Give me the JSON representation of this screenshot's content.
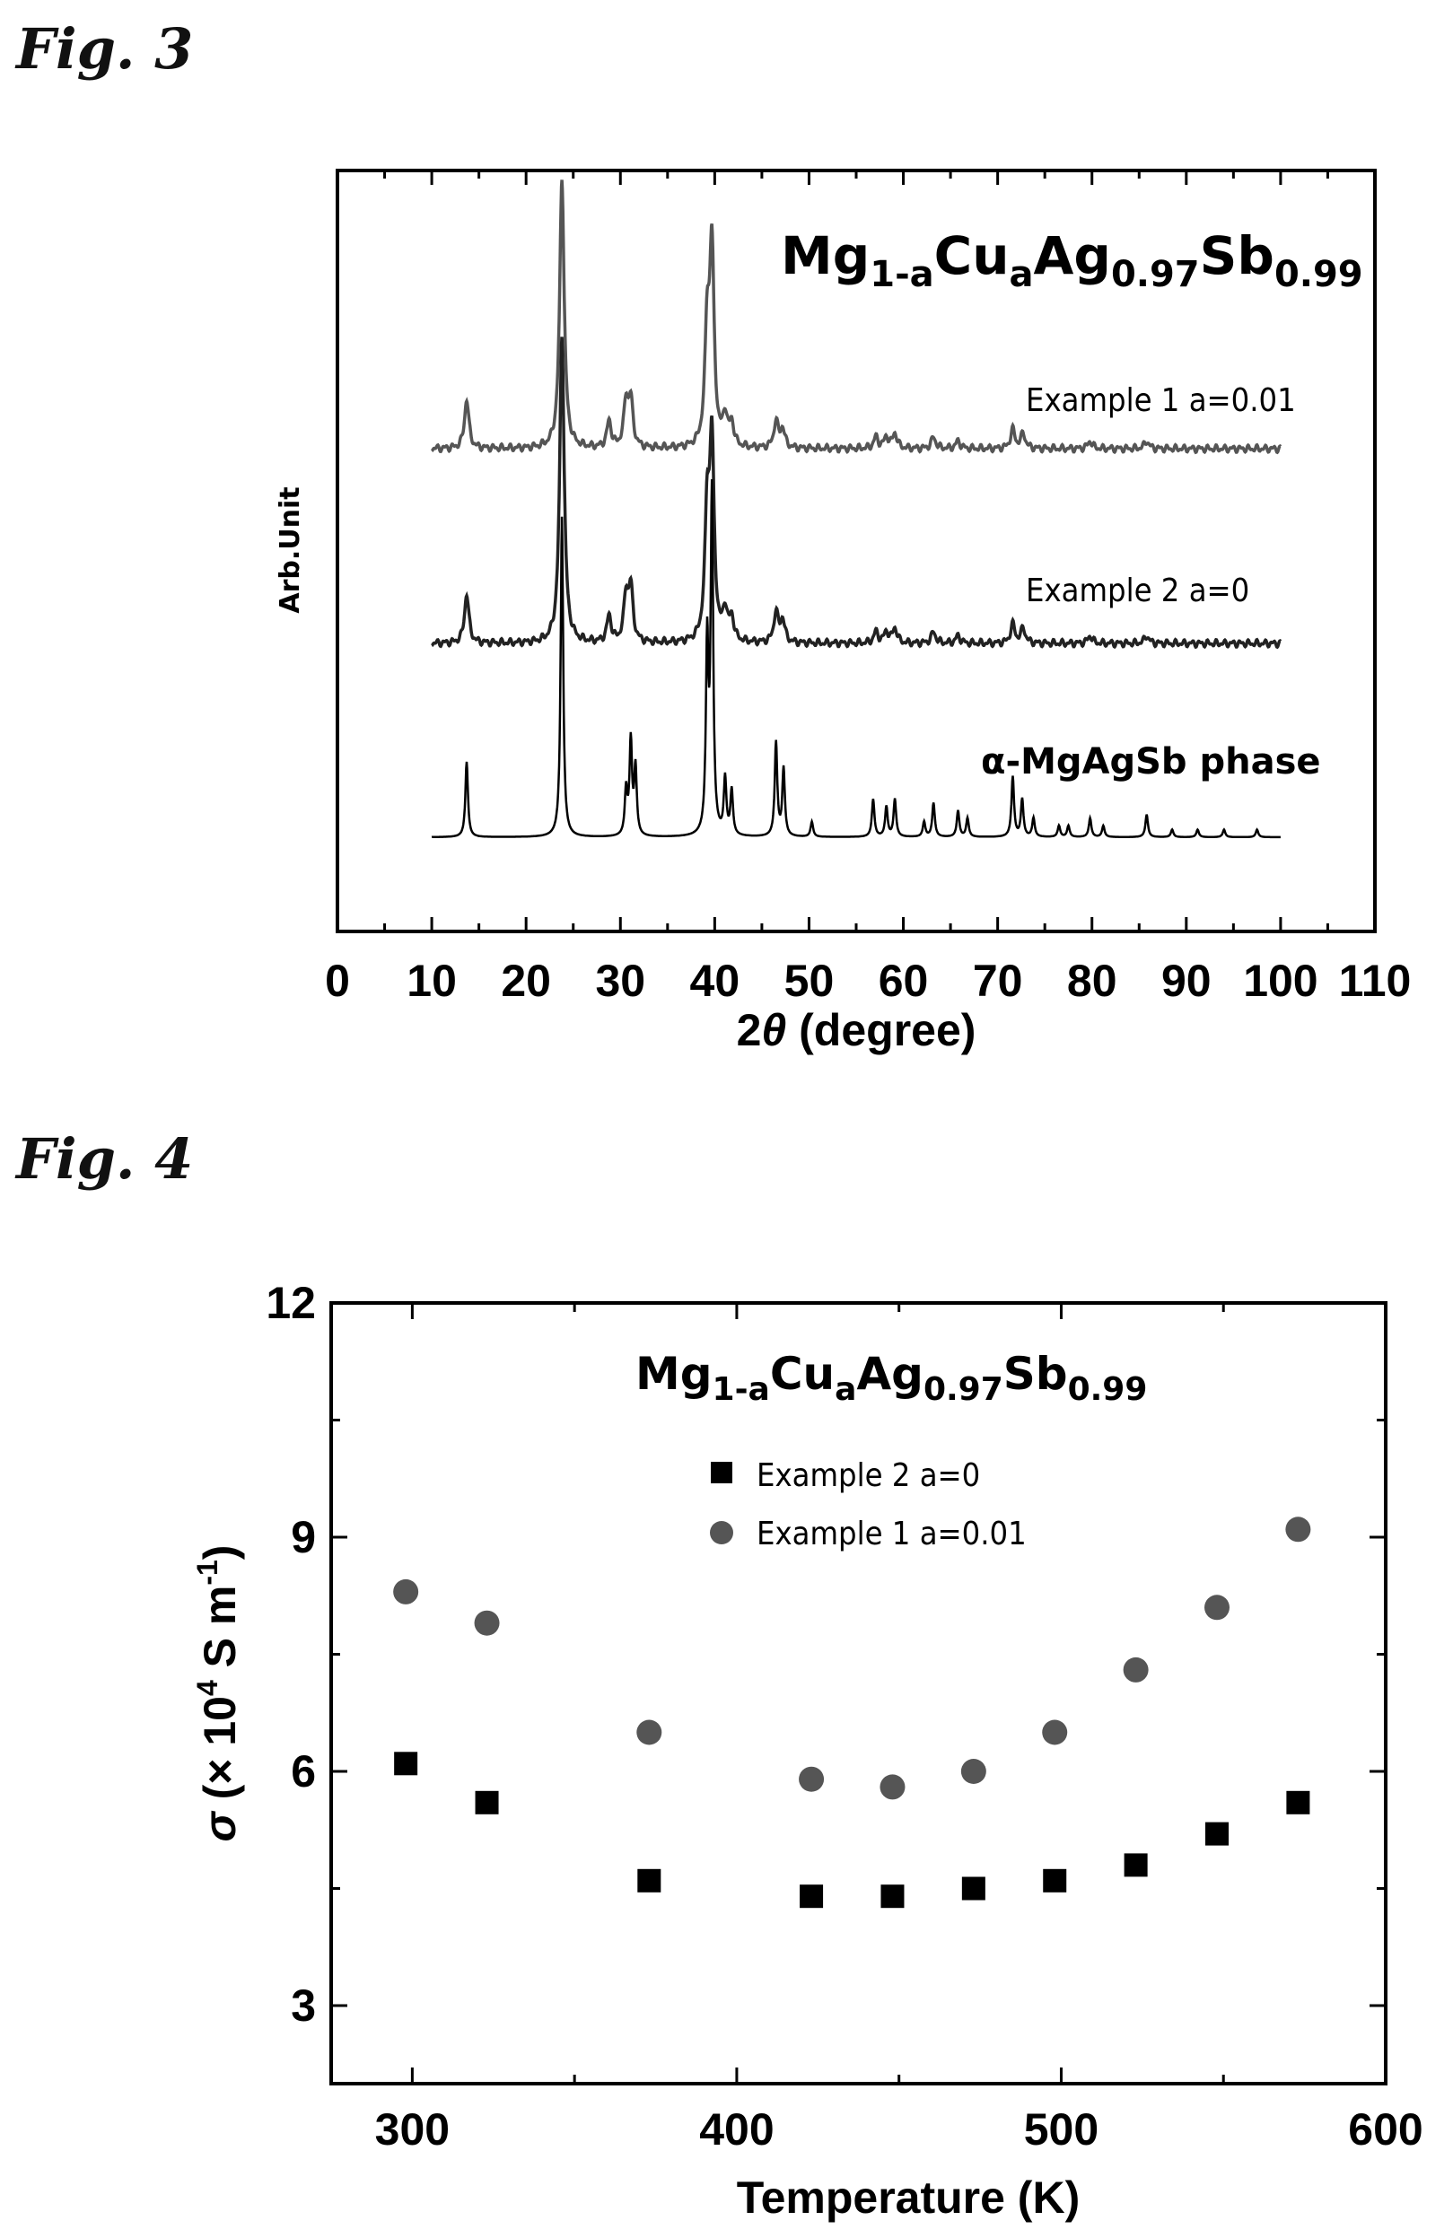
{
  "fig3": {
    "label": "Fig. 3",
    "chart_data": {
      "type": "line",
      "title_parts": {
        "base1": "Mg",
        "sub1": "1-a",
        "base2": "Cu",
        "sub2": "a",
        "base3": "Ag",
        "sub3": "0.97",
        "base4": "Sb",
        "sub4": "0.99"
      },
      "xlabel": "2θ (degree)",
      "xlabel_parts": {
        "num": "2",
        "theta": "θ",
        "rest": " (degree)"
      },
      "ylabel": "Arb.Unit",
      "xlim": [
        0,
        110
      ],
      "xticks": [
        0,
        10,
        20,
        30,
        40,
        50,
        60,
        70,
        80,
        90,
        100,
        110
      ],
      "xrange_measured": [
        10,
        100
      ],
      "series": [
        {
          "name": "Example 1  a=0.01",
          "offset": 2.0,
          "color": "#555555",
          "peaks": [
            [
              13.7,
              0.13
            ],
            [
              23.8,
              0.72
            ],
            [
              28.8,
              0.07
            ],
            [
              30.6,
              0.12
            ],
            [
              31.1,
              0.12
            ],
            [
              39.2,
              0.3
            ],
            [
              39.7,
              0.52
            ],
            [
              41.1,
              0.08
            ],
            [
              41.8,
              0.06
            ],
            [
              46.5,
              0.07
            ],
            [
              47.2,
              0.05
            ],
            [
              57.1,
              0.03
            ],
            [
              58.2,
              0.03
            ],
            [
              59.1,
              0.04
            ],
            [
              63.2,
              0.03
            ],
            [
              65.8,
              0.02
            ],
            [
              71.6,
              0.05
            ],
            [
              72.7,
              0.04
            ],
            [
              79.8,
              0.02
            ],
            [
              85.8,
              0.02
            ]
          ]
        },
        {
          "name": "Example 2  a=0",
          "offset": 1.0,
          "color": "#222222",
          "peaks": [
            [
              13.7,
              0.13
            ],
            [
              23.8,
              0.82
            ],
            [
              28.8,
              0.07
            ],
            [
              30.6,
              0.12
            ],
            [
              31.1,
              0.14
            ],
            [
              39.2,
              0.33
            ],
            [
              39.7,
              0.52
            ],
            [
              41.1,
              0.08
            ],
            [
              41.8,
              0.06
            ],
            [
              46.5,
              0.08
            ],
            [
              47.2,
              0.06
            ],
            [
              57.1,
              0.03
            ],
            [
              58.2,
              0.03
            ],
            [
              59.1,
              0.04
            ],
            [
              63.2,
              0.03
            ],
            [
              65.8,
              0.02
            ],
            [
              71.6,
              0.05
            ],
            [
              72.7,
              0.04
            ],
            [
              79.8,
              0.02
            ],
            [
              85.8,
              0.02
            ]
          ]
        },
        {
          "name": "α-MgAgSb phase",
          "offset": 0.0,
          "color": "#000000",
          "peaks": [
            [
              13.7,
              0.2
            ],
            [
              23.8,
              0.85
            ],
            [
              30.6,
              0.12
            ],
            [
              31.1,
              0.25
            ],
            [
              31.6,
              0.18
            ],
            [
              39.2,
              0.5
            ],
            [
              39.7,
              0.9
            ],
            [
              41.1,
              0.15
            ],
            [
              41.8,
              0.12
            ],
            [
              46.5,
              0.25
            ],
            [
              47.3,
              0.18
            ],
            [
              50.3,
              0.04
            ],
            [
              56.8,
              0.1
            ],
            [
              58.2,
              0.08
            ],
            [
              59.1,
              0.1
            ],
            [
              62.2,
              0.04
            ],
            [
              63.2,
              0.09
            ],
            [
              65.8,
              0.07
            ],
            [
              66.8,
              0.05
            ],
            [
              71.6,
              0.16
            ],
            [
              72.6,
              0.1
            ],
            [
              73.8,
              0.05
            ],
            [
              76.5,
              0.03
            ],
            [
              77.5,
              0.03
            ],
            [
              79.8,
              0.05
            ],
            [
              81.2,
              0.03
            ],
            [
              85.8,
              0.06
            ],
            [
              88.5,
              0.02
            ],
            [
              91.2,
              0.02
            ],
            [
              94.0,
              0.02
            ],
            [
              97.5,
              0.02
            ]
          ]
        }
      ]
    }
  },
  "fig4": {
    "label": "Fig. 4",
    "chart_data": {
      "type": "scatter",
      "title_parts": {
        "base1": "Mg",
        "sub1": "1-a",
        "base2": "Cu",
        "sub2": "a",
        "base3": "Ag",
        "sub3": "0.97",
        "base4": "Sb",
        "sub4": "0.99"
      },
      "xlabel": "Temperature (K)",
      "ylabel": "σ (× 10⁴ S m⁻¹)",
      "ylabel_parts": {
        "sigma": "σ",
        "open": " (× 10",
        "sup": "4",
        "mid": " S m",
        "sup2": "-1",
        "close": ")"
      },
      "xlim": [
        275,
        600
      ],
      "ylim": [
        2,
        12
      ],
      "xticks": [
        300,
        400,
        500,
        600
      ],
      "yticks": [
        3,
        6,
        9,
        12
      ],
      "series": [
        {
          "name": "Example 2  a=0",
          "marker": "square",
          "color": "#000000",
          "x": [
            298,
            323,
            373,
            423,
            448,
            473,
            498,
            523,
            548,
            573
          ],
          "y": [
            6.1,
            5.6,
            4.6,
            4.4,
            4.4,
            4.5,
            4.6,
            4.8,
            5.2,
            5.6
          ]
        },
        {
          "name": "Example 1  a=0.01",
          "marker": "circle",
          "color": "#555555",
          "x": [
            298,
            323,
            373,
            423,
            448,
            473,
            498,
            523,
            548,
            573
          ],
          "y": [
            8.3,
            7.9,
            6.5,
            5.9,
            5.8,
            6.0,
            6.5,
            7.3,
            8.1,
            9.1
          ]
        }
      ]
    }
  }
}
